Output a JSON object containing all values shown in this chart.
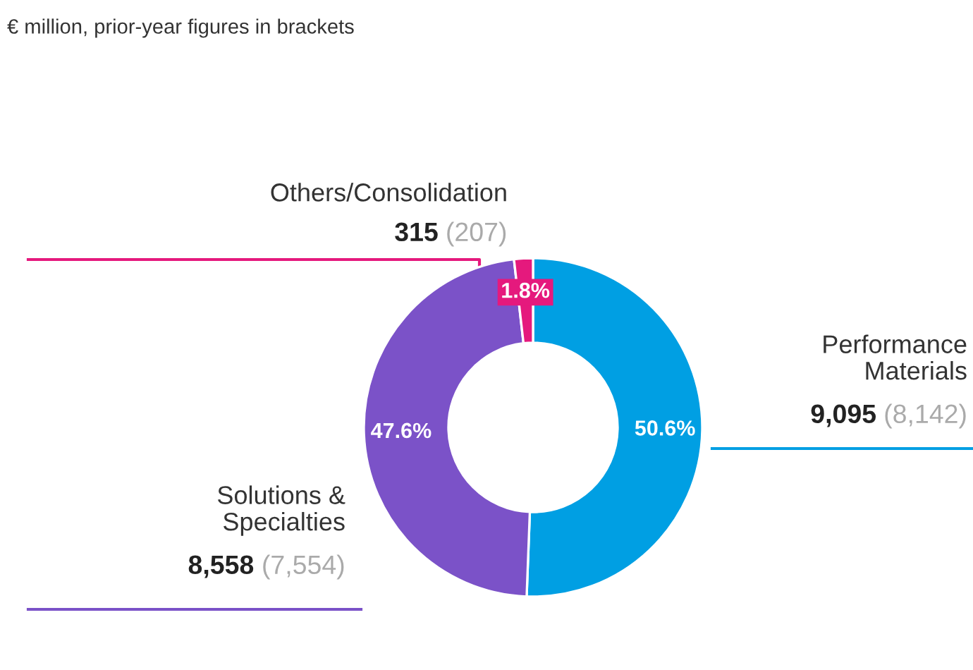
{
  "chart_data": {
    "type": "donut",
    "title": "€ million, prior-year figures in brackets",
    "categories": [
      "Performance\nMaterials",
      "Solutions &\nSpecialties",
      "Others/Consolidation"
    ],
    "values": [
      50.6,
      47.6,
      1.8
    ],
    "colors": [
      "#009fe3",
      "#7b52c8",
      "#e5197d"
    ],
    "value_labels": [
      "50.6%",
      "47.6%",
      "1.8%"
    ],
    "annotations": [
      "9,095",
      "(8,142)",
      "8,558",
      "(7,554)",
      "315",
      "(207)"
    ]
  }
}
